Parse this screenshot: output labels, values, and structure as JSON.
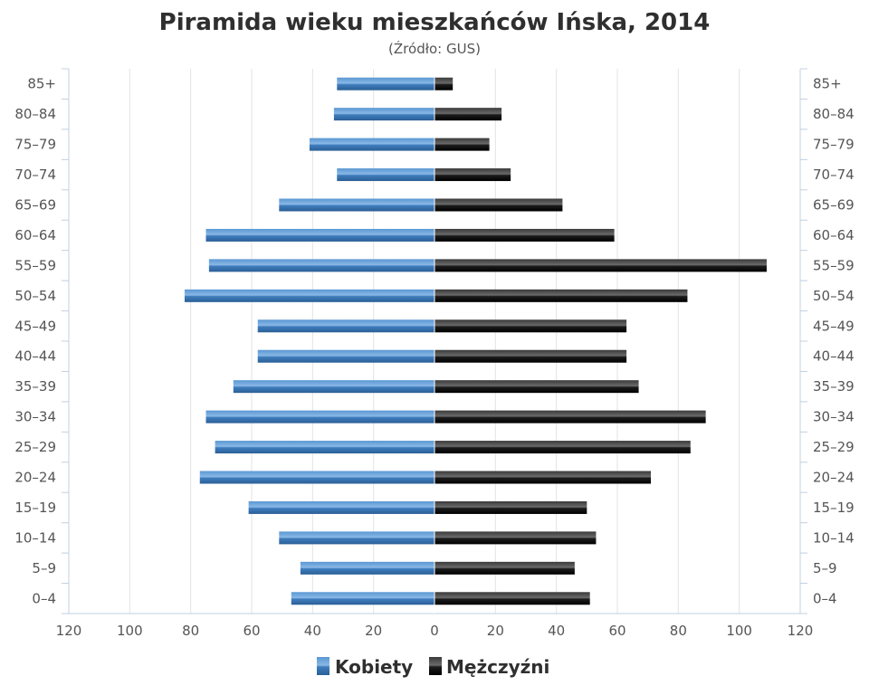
{
  "chart_data": {
    "type": "bar",
    "orientation": "horizontal-population-pyramid",
    "title": "Piramida wieku mieszkańców Ińska, 2014",
    "subtitle": "(Źródło: GUS)",
    "categories": [
      "0–4",
      "5–9",
      "10–14",
      "15–19",
      "20–24",
      "25–29",
      "30–34",
      "35–39",
      "40–44",
      "45–49",
      "50–54",
      "55–59",
      "60–64",
      "65–69",
      "70–74",
      "75–79",
      "80–84",
      "85+"
    ],
    "series": [
      {
        "name": "Kobiety",
        "color": "#3d7ab8",
        "values": [
          47,
          44,
          51,
          61,
          77,
          72,
          75,
          66,
          58,
          58,
          82,
          74,
          75,
          51,
          32,
          41,
          33,
          32
        ]
      },
      {
        "name": "Mężczyźni",
        "color": "#1a1a1a",
        "values": [
          51,
          46,
          53,
          50,
          71,
          84,
          89,
          67,
          63,
          63,
          83,
          109,
          59,
          42,
          25,
          18,
          22,
          6
        ]
      }
    ],
    "x_ticks": [
      "120",
      "100",
      "80",
      "60",
      "40",
      "20",
      "0",
      "20",
      "40",
      "60",
      "80",
      "100",
      "120"
    ],
    "xlim": [
      -120,
      120
    ],
    "legend": "bottom-center",
    "grid": true
  }
}
